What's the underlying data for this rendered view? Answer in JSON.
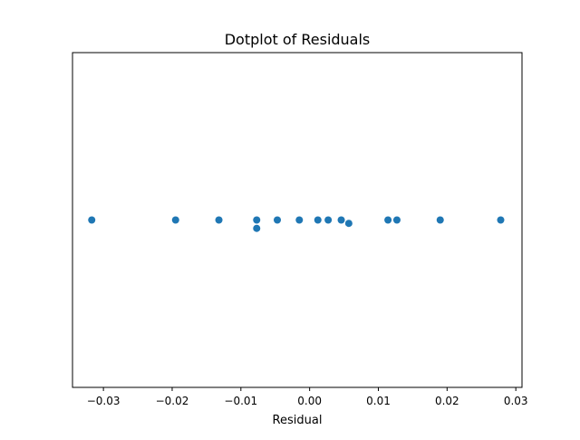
{
  "chart_data": {
    "type": "scatter",
    "title": "Dotplot of Residuals",
    "xlabel": "Residual",
    "ylabel": "",
    "xlim": [
      -0.0345,
      0.0309
    ],
    "ylim": [
      -1,
      1
    ],
    "grid": false,
    "legend": "none",
    "x_ticks": [
      -0.03,
      -0.02,
      -0.01,
      0.0,
      0.01,
      0.02,
      0.03
    ],
    "x_tick_labels": [
      "−0.03",
      "−0.02",
      "−0.01",
      "0.00",
      "0.01",
      "0.02",
      "0.03"
    ],
    "series": [
      {
        "color": "#1f77b4",
        "points": [
          {
            "x": -0.0317,
            "y": 0.0
          },
          {
            "x": -0.0195,
            "y": 0.0
          },
          {
            "x": -0.0132,
            "y": 0.0
          },
          {
            "x": -0.0077,
            "y": 0.0
          },
          {
            "x": -0.0077,
            "y": -0.05
          },
          {
            "x": -0.0047,
            "y": 0.0
          },
          {
            "x": -0.0015,
            "y": 0.0
          },
          {
            "x": 0.0012,
            "y": 0.0
          },
          {
            "x": 0.0027,
            "y": 0.0
          },
          {
            "x": 0.0046,
            "y": 0.0
          },
          {
            "x": 0.0057,
            "y": -0.02
          },
          {
            "x": 0.0114,
            "y": 0.0
          },
          {
            "x": 0.0127,
            "y": 0.0
          },
          {
            "x": 0.019,
            "y": 0.0
          },
          {
            "x": 0.0278,
            "y": 0.0
          }
        ]
      }
    ]
  }
}
